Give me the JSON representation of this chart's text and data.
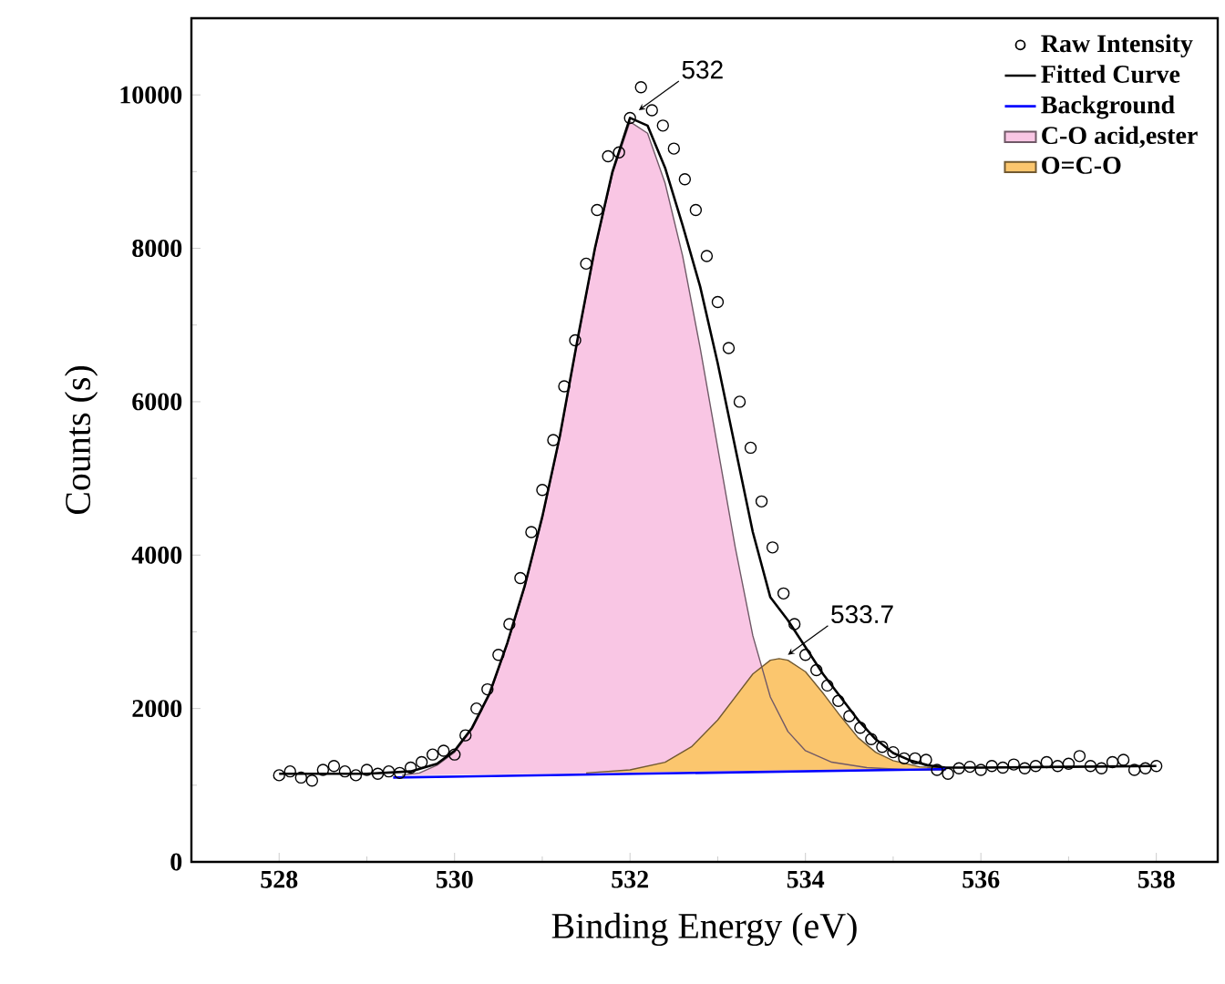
{
  "chart_data": {
    "type": "line",
    "xlabel": "Binding Energy (eV)",
    "ylabel": "Counts (s)",
    "xlim": [
      527,
      538.7
    ],
    "ylim": [
      0,
      11000
    ],
    "xticks": [
      528,
      530,
      532,
      534,
      536,
      538
    ],
    "yticks": [
      0,
      2000,
      4000,
      6000,
      8000,
      10000
    ],
    "legend": "top right",
    "grid": false,
    "series": [
      {
        "name": "Raw Intensity",
        "type": "scatter",
        "marker": "circle",
        "color": "#000000",
        "x": [
          528,
          528.125,
          528.25,
          528.375,
          528.5,
          528.625,
          528.75,
          528.875,
          529,
          529.125,
          529.25,
          529.375,
          529.5,
          529.625,
          529.75,
          529.875,
          530,
          530.125,
          530.25,
          530.375,
          530.5,
          530.625,
          530.75,
          530.875,
          531,
          531.125,
          531.25,
          531.375,
          531.5,
          531.625,
          531.75,
          531.875,
          532,
          532.125,
          532.25,
          532.375,
          532.5,
          532.625,
          532.75,
          532.875,
          533,
          533.125,
          533.25,
          533.375,
          533.5,
          533.625,
          533.75,
          533.875,
          534,
          534.125,
          534.25,
          534.375,
          534.5,
          534.625,
          534.75,
          534.875,
          535,
          535.125,
          535.25,
          535.375,
          535.5,
          535.625,
          535.75,
          535.875,
          536,
          536.125,
          536.25,
          536.375,
          536.5,
          536.625,
          536.75,
          536.875,
          537,
          537.125,
          537.25,
          537.375,
          537.5,
          537.625,
          537.75,
          537.875,
          538
        ],
        "values": [
          1130,
          1180,
          1100,
          1060,
          1200,
          1250,
          1180,
          1130,
          1200,
          1150,
          1180,
          1160,
          1230,
          1300,
          1400,
          1450,
          1400,
          1650,
          2000,
          2250,
          2700,
          3100,
          3700,
          4300,
          4850,
          5500,
          6200,
          6800,
          7800,
          8500,
          9200,
          9250,
          9700,
          10100,
          9800,
          9600,
          9300,
          8900,
          8500,
          7900,
          7300,
          6700,
          6000,
          5400,
          4700,
          4100,
          3500,
          3100,
          2700,
          2500,
          2300,
          2100,
          1900,
          1750,
          1600,
          1500,
          1430,
          1350,
          1350,
          1330,
          1200,
          1150,
          1220,
          1240,
          1200,
          1250,
          1230,
          1270,
          1220,
          1250,
          1300,
          1250,
          1280,
          1380,
          1250,
          1220,
          1300,
          1330,
          1200,
          1220,
          1250
        ]
      },
      {
        "name": "Fitted Curve",
        "color": "#000000",
        "x": [
          528,
          528.5,
          529,
          529.5,
          529.8,
          530,
          530.2,
          530.4,
          530.6,
          530.8,
          531,
          531.2,
          531.4,
          531.6,
          531.8,
          532,
          532.2,
          532.4,
          532.6,
          532.8,
          533,
          533.2,
          533.4,
          533.6,
          533.8,
          534,
          534.2,
          534.4,
          534.6,
          534.8,
          535,
          535.2,
          535.4,
          535.6,
          536,
          537,
          538
        ],
        "values": [
          1150,
          1150,
          1150,
          1180,
          1280,
          1450,
          1750,
          2200,
          2850,
          3600,
          4500,
          5550,
          6800,
          8000,
          9000,
          9700,
          9600,
          9050,
          8300,
          7500,
          6500,
          5400,
          4300,
          3450,
          3150,
          2800,
          2450,
          2150,
          1850,
          1600,
          1420,
          1320,
          1260,
          1230,
          1230,
          1240,
          1250
        ]
      },
      {
        "name": "Background",
        "color": "#0000ff",
        "x": [
          529.3,
          535.6
        ],
        "values": [
          1100,
          1210
        ]
      },
      {
        "name": "C-O acid,ester",
        "type": "area",
        "color": "#f9c6e4",
        "x": [
          529.4,
          529.6,
          529.8,
          530,
          530.2,
          530.4,
          530.6,
          530.8,
          531,
          531.2,
          531.4,
          531.6,
          531.8,
          532,
          532.2,
          532.4,
          532.6,
          532.8,
          533,
          533.2,
          533.4,
          533.6,
          533.8,
          534,
          534.3,
          534.7,
          535.2,
          535.6
        ],
        "values": [
          1130,
          1160,
          1260,
          1430,
          1730,
          2180,
          2830,
          3580,
          4480,
          5530,
          6780,
          7980,
          8970,
          9650,
          9500,
          8850,
          7900,
          6700,
          5400,
          4100,
          2950,
          2150,
          1700,
          1450,
          1300,
          1230,
          1200,
          1200
        ]
      },
      {
        "name": "O=C-O",
        "type": "area",
        "color": "#fbc66e",
        "x": [
          531.5,
          532,
          532.4,
          532.7,
          533,
          533.2,
          533.4,
          533.6,
          533.7,
          533.8,
          534,
          534.2,
          534.4,
          534.6,
          534.8,
          535,
          535.3,
          535.6
        ],
        "values": [
          1160,
          1200,
          1300,
          1500,
          1850,
          2150,
          2450,
          2630,
          2650,
          2630,
          2480,
          2200,
          1900,
          1620,
          1430,
          1320,
          1240,
          1220
        ]
      }
    ],
    "annotations": [
      {
        "text": "532",
        "x": 532.1,
        "y": 9800
      },
      {
        "text": "533.7",
        "x": 533.8,
        "y": 2700
      }
    ]
  }
}
